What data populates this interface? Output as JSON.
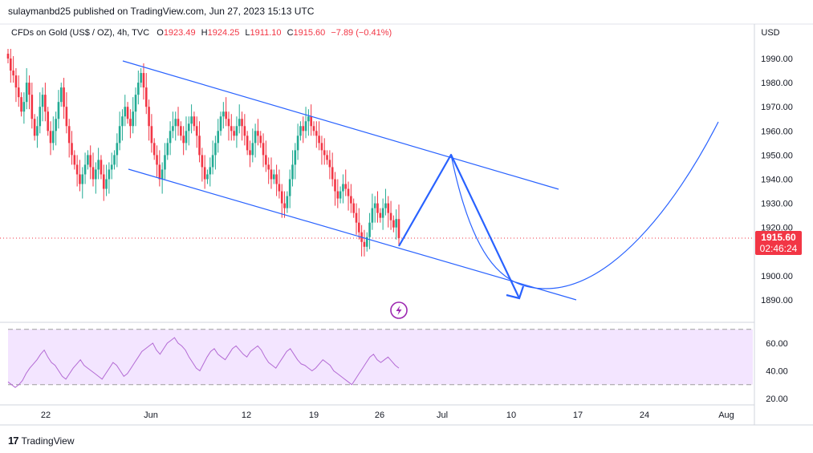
{
  "header": {
    "publisher": "sulaymanbd25 published on TradingView.com, Jun 27, 2023 15:13 UTC"
  },
  "legend": {
    "symbol": "CFDs on Gold (US$ / OZ), 4h, TVC",
    "open_label": "O",
    "open": "1923.49",
    "high_label": "H",
    "high": "1924.25",
    "low_label": "L",
    "low": "1911.10",
    "close_label": "C",
    "close": "1915.60",
    "change": "−7.89 (−0.41%)"
  },
  "price_axis": {
    "currency": "USD",
    "ticks": [
      "1990.00",
      "1980.00",
      "1970.00",
      "1960.00",
      "1950.00",
      "1940.00",
      "1930.00",
      "1920.00",
      "1900.00",
      "1890.00"
    ],
    "last_price": "1915.60",
    "countdown": "02:46:24",
    "last_price_color": "#f23645"
  },
  "rsi_axis": {
    "ticks": [
      "60.00",
      "40.00",
      "20.00"
    ]
  },
  "time_axis": {
    "ticks": [
      "22",
      "Jun",
      "12",
      "19",
      "26",
      "Jul",
      "10",
      "17",
      "24",
      "Aug"
    ]
  },
  "footer": {
    "brand": "TradingView",
    "logo_text": "17"
  },
  "colors": {
    "up": "#22ab94",
    "down": "#f23645",
    "drawing": "#2962ff",
    "rsi_line": "#b36ad4",
    "rsi_band": "#f3e5ff"
  },
  "chart_data": {
    "type": "candlestick",
    "symbol": "CFDs on Gold (US$ / OZ), 4h, TVC",
    "timeframe": "4h",
    "ylabel": "USD",
    "ylim": [
      1882,
      2003
    ],
    "last_close": 1915.6,
    "closes_approx": [
      1990,
      1985,
      1983,
      1978,
      1974,
      1968,
      1972,
      1980,
      1975,
      1965,
      1958,
      1962,
      1970,
      1975,
      1968,
      1960,
      1955,
      1960,
      1965,
      1972,
      1978,
      1970,
      1962,
      1955,
      1950,
      1946,
      1942,
      1938,
      1942,
      1946,
      1950,
      1945,
      1940,
      1944,
      1948,
      1942,
      1936,
      1940,
      1944,
      1946,
      1950,
      1955,
      1962,
      1966,
      1970,
      1965,
      1962,
      1968,
      1975,
      1980,
      1984,
      1978,
      1970,
      1962,
      1955,
      1950,
      1946,
      1940,
      1944,
      1950,
      1955,
      1960,
      1962,
      1965,
      1962,
      1958,
      1955,
      1960,
      1963,
      1966,
      1962,
      1958,
      1950,
      1945,
      1940,
      1942,
      1945,
      1950,
      1955,
      1960,
      1966,
      1968,
      1965,
      1962,
      1960,
      1958,
      1962,
      1965,
      1962,
      1958,
      1952,
      1950,
      1955,
      1960,
      1958,
      1955,
      1950,
      1946,
      1944,
      1940,
      1942,
      1938,
      1935,
      1930,
      1928,
      1933,
      1940,
      1946,
      1952,
      1958,
      1962,
      1960,
      1964,
      1966,
      1962,
      1960,
      1958,
      1955,
      1952,
      1950,
      1948,
      1945,
      1940,
      1935,
      1932,
      1935,
      1938,
      1936,
      1933,
      1930,
      1926,
      1922,
      1918,
      1914,
      1912,
      1916,
      1922,
      1928,
      1930,
      1926,
      1924,
      1928,
      1930,
      1926,
      1923,
      1920,
      1923.49,
      1915.6
    ],
    "rsi": {
      "name": "RSI",
      "bands": [
        70,
        30
      ],
      "values_approx": [
        32,
        30,
        28,
        30,
        33,
        38,
        42,
        45,
        48,
        52,
        55,
        50,
        46,
        44,
        40,
        36,
        34,
        38,
        42,
        45,
        48,
        44,
        42,
        40,
        38,
        36,
        34,
        38,
        42,
        46,
        44,
        40,
        36,
        38,
        42,
        46,
        50,
        54,
        56,
        58,
        60,
        55,
        52,
        56,
        60,
        62,
        64,
        60,
        58,
        55,
        50,
        46,
        42,
        40,
        45,
        50,
        54,
        56,
        52,
        50,
        48,
        52,
        56,
        58,
        55,
        52,
        50,
        54,
        56,
        58,
        55,
        50,
        46,
        44,
        42,
        46,
        50,
        54,
        56,
        52,
        48,
        45,
        44,
        42,
        40,
        42,
        45,
        48,
        46,
        44,
        40,
        38,
        36,
        34,
        32,
        30,
        34,
        38,
        42,
        46,
        50,
        52,
        48,
        46,
        48,
        50,
        47,
        44,
        42
      ]
    },
    "drawings": {
      "channel_upper": [
        [
          1990,
          "May 26"
        ],
        [
          1935,
          "Jul 14"
        ]
      ],
      "channel_lower": [
        [
          1945,
          "May 31"
        ],
        [
          1890,
          "Jul 17"
        ]
      ],
      "projection_path": [
        1912,
        1950,
        1891
      ],
      "projection_curve": "parabolic recovery toward 1964"
    },
    "x_ticks": [
      "22",
      "Jun",
      "12",
      "19",
      "26",
      "Jul",
      "10",
      "17",
      "24",
      "Aug"
    ],
    "y_ticks": [
      1890,
      1900,
      1920,
      1930,
      1940,
      1950,
      1960,
      1970,
      1980,
      1990
    ]
  }
}
